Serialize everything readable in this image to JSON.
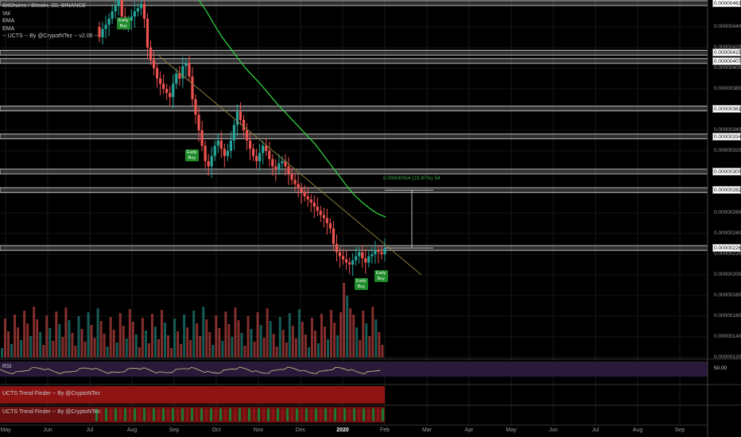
{
  "legend": {
    "symbol": "BitShares / Bitcoin, 2D, BINANCE",
    "indicators": [
      "Vol",
      "EMA",
      "EMA",
      "-- UCTS -- By @CrypotNTez -- v2.06 --"
    ]
  },
  "panes": {
    "rsi_label": "RSI",
    "rsi_value": "50.00",
    "trend1_label": "UCTS Trend Finder -- By @CryptoNTez",
    "trend2_label": "UCTS Trend Finder -- By @CryptoNTez"
  },
  "signals": [
    {
      "text": "Early\nBuy",
      "date_index": 10
    },
    {
      "text": "Early\nBuy",
      "date_index": 48
    },
    {
      "text": "Early\nBuy",
      "date_index": 94
    },
    {
      "text": "Early\nBuy",
      "date_index": 99
    }
  ],
  "measure": {
    "label": "0.00000054 (23.87%) 54"
  },
  "colors": {
    "up": "#26a69a",
    "down": "#ef5350",
    "ema": "#2ecc40",
    "trendline": "#8a7a3a",
    "zone": "#bdbdbd",
    "rsi_bg": "#2a1a3a",
    "rsi_line": "#d8c78a"
  },
  "chart_data": {
    "type": "candlestick",
    "title": "BitShares / Bitcoin, 2D, BINANCE",
    "x_ticks": [
      "May",
      "Jun",
      "Jul",
      "Aug",
      "Sep",
      "Oct",
      "Nov",
      "Dec",
      "2020",
      "Feb",
      "Mar",
      "Apr",
      "May",
      "Jun",
      "Jul",
      "Aug",
      "Sep"
    ],
    "y_ticks": [
      "0.00000440",
      "0.00000420",
      "0.00000400",
      "0.00000380",
      "0.00000360",
      "0.00000340",
      "0.00000320",
      "0.00000300",
      "0.00000280",
      "0.00000260",
      "0.00000240",
      "0.00000220",
      "0.00000200",
      "0.00000180",
      "0.00000160",
      "0.00000140",
      "0.00000120"
    ],
    "ylim": [
      1.2e-06,
      4.66e-06
    ],
    "horizontal_levels": [
      "0.00000463",
      "0.00000415",
      "0.00000407",
      "0.00000361",
      "0.00000334",
      "0.00000300",
      "0.00000282",
      "0.00000226"
    ],
    "closes": [
      4.3,
      4.38,
      4.42,
      4.48,
      4.55,
      4.6,
      4.68,
      4.5,
      4.42,
      4.46,
      4.5,
      4.55,
      4.58,
      4.62,
      4.48,
      4.2,
      4.08,
      4.0,
      3.9,
      3.85,
      3.8,
      3.76,
      3.72,
      3.85,
      3.95,
      3.9,
      4.02,
      4.05,
      3.92,
      3.7,
      3.55,
      3.4,
      3.25,
      3.1,
      3.05,
      3.15,
      3.25,
      3.3,
      3.22,
      3.15,
      3.2,
      3.3,
      3.45,
      3.58,
      3.5,
      3.4,
      3.3,
      3.22,
      3.15,
      3.1,
      3.18,
      3.25,
      3.2,
      3.12,
      3.05,
      3.02,
      3.08,
      3.1,
      3.05,
      2.98,
      2.92,
      2.88,
      2.84,
      2.8,
      2.76,
      2.73,
      2.7,
      2.66,
      2.62,
      2.58,
      2.55,
      2.5,
      2.45,
      2.3,
      2.22,
      2.18,
      2.15,
      2.12,
      2.1,
      2.14,
      2.18,
      2.22,
      2.16,
      2.12,
      2.18,
      2.2,
      2.24,
      2.22,
      2.2,
      2.26
    ],
    "ema_long": [
      4.66,
      4.55,
      4.42,
      4.3,
      4.2,
      4.1,
      4.0,
      3.92,
      3.84,
      3.75,
      3.66,
      3.58,
      3.5,
      3.42,
      3.34,
      3.26,
      3.16,
      3.06,
      2.96,
      2.86,
      2.77,
      2.7,
      2.64,
      2.59,
      2.56
    ],
    "rsi_value": 50.0
  }
}
